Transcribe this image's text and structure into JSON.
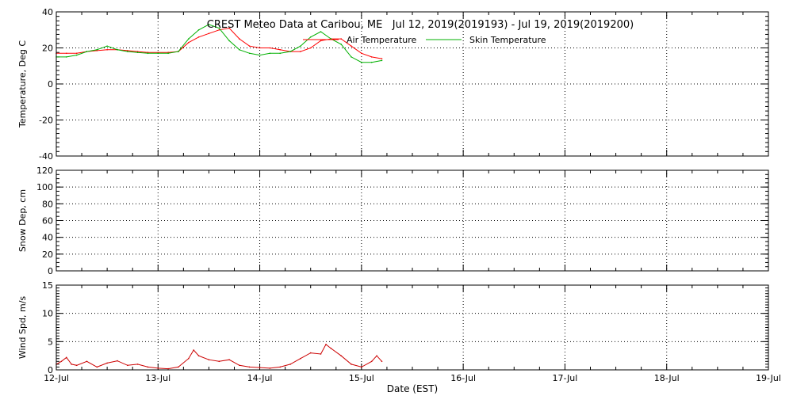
{
  "chart_data": {
    "title": "CREST Meteo Data at Caribou, ME   Jul 12, 2019(2019193) - Jul 19, 2019(2019200)",
    "xlabel": "Date (EST)",
    "x_tick_labels": [
      "12-Jul",
      "13-Jul",
      "14-Jul",
      "15-Jul",
      "16-Jul",
      "17-Jul",
      "18-Jul",
      "19-Jul"
    ],
    "xlim_days": [
      12,
      19
    ],
    "grid": true,
    "panels": [
      {
        "type": "line",
        "ylabel": "Temperature, Deg C",
        "ylim": [
          -40,
          40
        ],
        "y_ticks": [
          40,
          20,
          0,
          -20,
          -40
        ],
        "legend": "top-center",
        "series": [
          {
            "name": "Air Temperature",
            "color": "#ff0000",
            "x": [
              12.0,
              12.1,
              12.2,
              12.3,
              12.4,
              12.5,
              12.6,
              12.7,
              12.8,
              12.9,
              13.0,
              13.1,
              13.2,
              13.3,
              13.4,
              13.5,
              13.6,
              13.7,
              13.8,
              13.9,
              14.0,
              14.1,
              14.2,
              14.3,
              14.4,
              14.5,
              14.6,
              14.7,
              14.8,
              14.9,
              15.0,
              15.1,
              15.2
            ],
            "y": [
              17,
              17,
              17,
              18,
              18.5,
              19,
              19,
              18.5,
              18,
              17.5,
              17.5,
              17.5,
              18,
              23,
              26,
              28,
              30,
              31,
              25,
              21,
              20,
              20,
              19,
              18,
              18,
              20,
              24,
              25,
              25,
              21,
              17,
              15,
              14
            ]
          },
          {
            "name": "Skin Temperature",
            "color": "#00b000",
            "x": [
              12.0,
              12.1,
              12.2,
              12.3,
              12.4,
              12.5,
              12.6,
              12.7,
              12.8,
              12.9,
              13.0,
              13.1,
              13.2,
              13.3,
              13.4,
              13.5,
              13.6,
              13.7,
              13.8,
              13.9,
              14.0,
              14.1,
              14.2,
              14.3,
              14.4,
              14.5,
              14.6,
              14.7,
              14.8,
              14.9,
              15.0,
              15.1,
              15.2
            ],
            "y": [
              15,
              15,
              16,
              18,
              19,
              21,
              19,
              18,
              17.5,
              17,
              17,
              17,
              18,
              25,
              30,
              33,
              31,
              24,
              19,
              17,
              16,
              17,
              17,
              18,
              21,
              26,
              29,
              25,
              22,
              15,
              12,
              12,
              13
            ]
          }
        ]
      },
      {
        "type": "line",
        "ylabel": "Snow Dep, cm",
        "ylim": [
          0,
          120
        ],
        "y_ticks": [
          120,
          100,
          80,
          60,
          40,
          20,
          0
        ],
        "series": []
      },
      {
        "type": "line",
        "ylabel": "Wind Spd, m/s",
        "ylim": [
          0,
          15
        ],
        "y_ticks": [
          15,
          10,
          5,
          0
        ],
        "series": [
          {
            "name": "",
            "color": "#cc0000",
            "x": [
              12.0,
              12.05,
              12.1,
              12.15,
              12.2,
              12.3,
              12.4,
              12.5,
              12.6,
              12.7,
              12.8,
              12.9,
              13.0,
              13.1,
              13.2,
              13.3,
              13.35,
              13.4,
              13.5,
              13.6,
              13.7,
              13.8,
              13.9,
              14.0,
              14.1,
              14.2,
              14.3,
              14.4,
              14.5,
              14.6,
              14.65,
              14.7,
              14.8,
              14.9,
              15.0,
              15.1,
              15.15,
              15.2
            ],
            "y": [
              1.0,
              1.5,
              2.2,
              1.0,
              0.8,
              1.5,
              0.5,
              1.2,
              1.6,
              0.8,
              1.0,
              0.5,
              0.3,
              0.2,
              0.5,
              2.0,
              3.5,
              2.5,
              1.8,
              1.5,
              1.8,
              0.8,
              0.5,
              0.4,
              0.3,
              0.5,
              1.0,
              2.0,
              3.0,
              2.8,
              4.5,
              3.8,
              2.5,
              1.0,
              0.5,
              1.5,
              2.5,
              1.5
            ]
          }
        ]
      }
    ]
  }
}
